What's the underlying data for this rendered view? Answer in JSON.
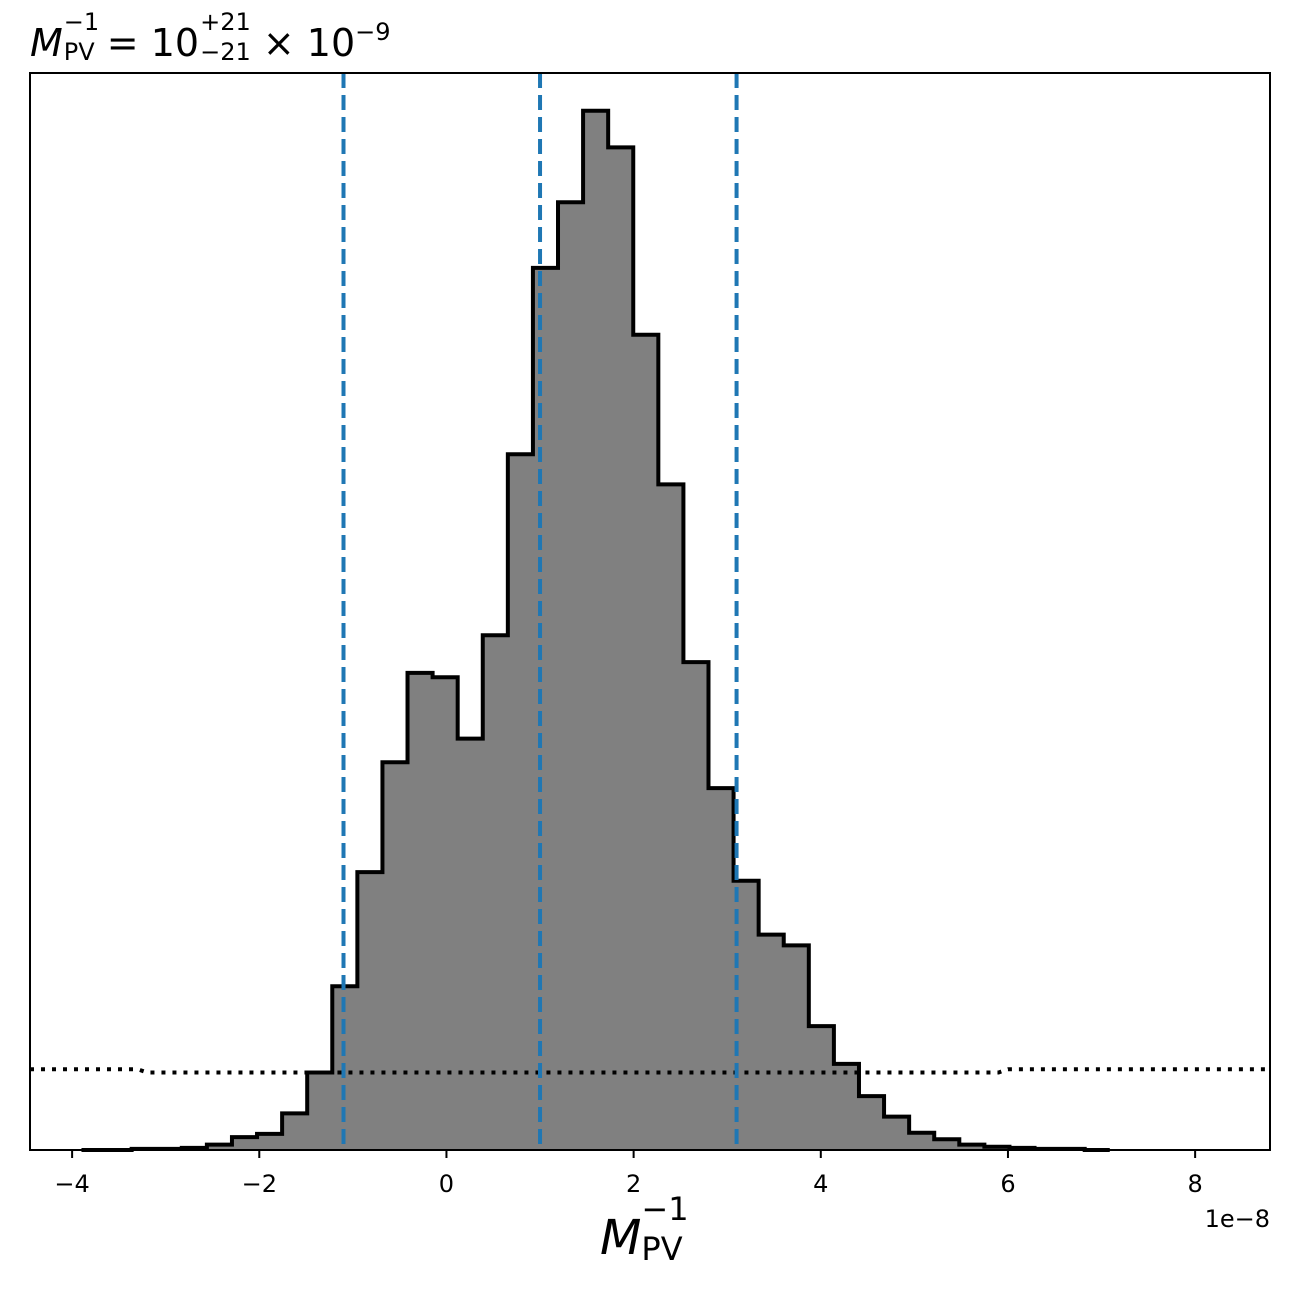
{
  "title": {
    "symbol": "M",
    "symbol_subscript": "PV",
    "symbol_superscript": "−1",
    "equals": "=",
    "median": "10",
    "upper_error": "+21",
    "lower_error": "−21",
    "times": "×",
    "scale_base": "10",
    "scale_exponent": "−9"
  },
  "chart_data": {
    "type": "histogram",
    "title": "M_PV^-1 = 10^{+21}_{-21} × 10^-9",
    "xlabel": "M_PV^-1",
    "ylabel": "",
    "x_offset_label": "1e−8",
    "xlim": [
      -4.45,
      8.8
    ],
    "ylim": [
      0,
      1.0
    ],
    "x_ticks": [
      -4,
      -2,
      0,
      2,
      4,
      6,
      8
    ],
    "x_tick_labels": [
      "−4",
      "−2",
      "0",
      "2",
      "4",
      "6",
      "8"
    ],
    "y_ticks_visible": false,
    "grid": false,
    "histogram": {
      "bin_start": -3.9,
      "bin_width": 0.268,
      "values": [
        0.0,
        0.0,
        0.001,
        0.001,
        0.002,
        0.005,
        0.012,
        0.015,
        0.034,
        0.072,
        0.152,
        0.258,
        0.36,
        0.443,
        0.439,
        0.382,
        0.478,
        0.646,
        0.819,
        0.88,
        0.965,
        0.931,
        0.757,
        0.618,
        0.453,
        0.336,
        0.25,
        0.2,
        0.19,
        0.115,
        0.08,
        0.05,
        0.031,
        0.016,
        0.01,
        0.005,
        0.003,
        0.002,
        0.001,
        0.001,
        0.0
      ],
      "fill_color": "#808080",
      "edge_color": "#000000"
    },
    "quantile_lines": {
      "x": [
        -1.1,
        1.0,
        3.1
      ],
      "style": "dashed",
      "color": "#1f77b4"
    },
    "prior": {
      "style": "dotted",
      "color": "#000000",
      "x": [
        -4.45,
        -3.3,
        -3.2,
        5.9,
        6.0,
        8.8
      ],
      "y": [
        0.075,
        0.075,
        0.072,
        0.072,
        0.075,
        0.075
      ]
    }
  }
}
